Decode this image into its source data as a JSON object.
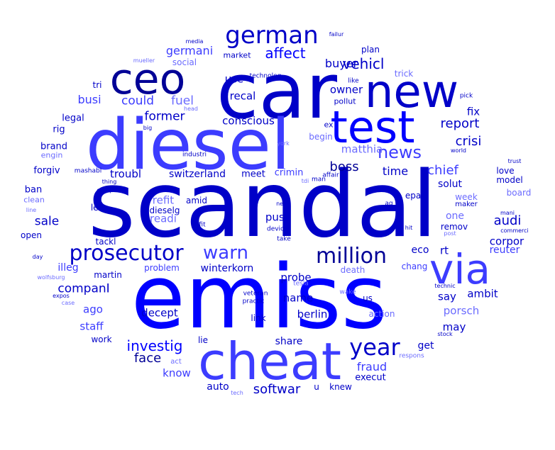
{
  "palette": {
    "blue": "#0000ff",
    "navy": "#0000c8",
    "medium": "#3c3cff",
    "light": "#6b6bff",
    "dark": "#000096"
  },
  "words": [
    {
      "text": "scandal",
      "size": 1.0,
      "tone": "navy"
    },
    {
      "text": "emiss",
      "size": 0.96,
      "tone": "blue"
    },
    {
      "text": "car",
      "size": 0.82,
      "tone": "navy"
    },
    {
      "text": "diesel",
      "size": 0.75,
      "tone": "medium"
    },
    {
      "text": "cheat",
      "size": 0.55,
      "tone": "medium"
    },
    {
      "text": "test",
      "size": 0.5,
      "tone": "blue"
    },
    {
      "text": "new",
      "size": 0.5,
      "tone": "navy"
    },
    {
      "text": "via",
      "size": 0.45,
      "tone": "medium"
    },
    {
      "text": "ceo",
      "size": 0.45,
      "tone": "dark"
    },
    {
      "text": "german",
      "size": 0.24,
      "tone": "navy"
    },
    {
      "text": "prosecutor",
      "size": 0.22,
      "tone": "navy"
    },
    {
      "text": "million",
      "size": 0.22,
      "tone": "dark"
    },
    {
      "text": "year",
      "size": 0.22,
      "tone": "navy"
    },
    {
      "text": "warn",
      "size": 0.18,
      "tone": "medium"
    },
    {
      "text": "news",
      "size": 0.16,
      "tone": "medium"
    },
    {
      "text": "affect",
      "size": 0.14,
      "tone": "blue"
    },
    {
      "text": "vehicl",
      "size": 0.13,
      "tone": "navy"
    },
    {
      "text": "investig",
      "size": 0.13,
      "tone": "blue"
    },
    {
      "text": "softwar",
      "size": 0.12,
      "tone": "navy"
    },
    {
      "text": "fraud",
      "size": 0.11,
      "tone": "medium"
    },
    {
      "text": "crisi",
      "size": 0.12,
      "tone": "navy"
    },
    {
      "text": "report",
      "size": 0.12,
      "tone": "navy"
    },
    {
      "text": "chief",
      "size": 0.12,
      "tone": "medium"
    },
    {
      "text": "boss",
      "size": 0.12,
      "tone": "dark"
    },
    {
      "text": "time",
      "size": 0.11,
      "tone": "navy"
    },
    {
      "text": "audi",
      "size": 0.12,
      "tone": "navy"
    },
    {
      "text": "companI",
      "size": 0.11,
      "tone": "navy"
    },
    {
      "text": "sale",
      "size": 0.12,
      "tone": "navy"
    },
    {
      "text": "face",
      "size": 0.12,
      "tone": "dark"
    },
    {
      "text": "former",
      "size": 0.11,
      "tone": "navy"
    },
    {
      "text": "fuel",
      "size": 0.11,
      "tone": "light"
    },
    {
      "text": "could",
      "size": 0.11,
      "tone": "medium"
    },
    {
      "text": "busi",
      "size": 0.1,
      "tone": "medium"
    },
    {
      "text": "germani",
      "size": 0.1,
      "tone": "medium"
    },
    {
      "text": "buyer",
      "size": 0.1,
      "tone": "navy"
    },
    {
      "text": "owner",
      "size": 0.1,
      "tone": "navy"
    },
    {
      "text": "use",
      "size": 0.1,
      "tone": "navy"
    },
    {
      "text": "recal",
      "size": 0.1,
      "tone": "navy"
    },
    {
      "text": "conscious",
      "size": 0.1,
      "tone": "navy"
    },
    {
      "text": "fix",
      "size": 0.1,
      "tone": "navy"
    },
    {
      "text": "matthia",
      "size": 0.09,
      "tone": "light"
    },
    {
      "text": "troubl",
      "size": 0.09,
      "tone": "navy"
    },
    {
      "text": "switzerland",
      "size": 0.09,
      "tone": "navy"
    },
    {
      "text": "refit",
      "size": 0.09,
      "tone": "light"
    },
    {
      "text": "readi",
      "size": 0.09,
      "tone": "light"
    },
    {
      "text": "push",
      "size": 0.09,
      "tone": "navy"
    },
    {
      "text": "probe",
      "size": 0.09,
      "tone": "navy"
    },
    {
      "text": "name",
      "size": 0.09,
      "tone": "navy"
    },
    {
      "text": "berlin",
      "size": 0.09,
      "tone": "navy"
    },
    {
      "text": "say",
      "size": 0.09,
      "tone": "navy"
    },
    {
      "text": "ambit",
      "size": 0.09,
      "tone": "navy"
    },
    {
      "text": "porsch",
      "size": 0.09,
      "tone": "light"
    },
    {
      "text": "may",
      "size": 0.09,
      "tone": "navy"
    },
    {
      "text": "ago",
      "size": 0.09,
      "tone": "medium"
    },
    {
      "text": "staff",
      "size": 0.09,
      "tone": "medium"
    },
    {
      "text": "decept",
      "size": 0.09,
      "tone": "navy"
    },
    {
      "text": "know",
      "size": 0.09,
      "tone": "medium"
    },
    {
      "text": "share",
      "size": 0.09,
      "tone": "navy"
    },
    {
      "text": "auto",
      "size": 0.09,
      "tone": "navy"
    },
    {
      "text": "get",
      "size": 0.08,
      "tone": "navy"
    },
    {
      "text": "execut",
      "size": 0.08,
      "tone": "navy"
    },
    {
      "text": "corpor",
      "size": 0.09,
      "tone": "navy"
    },
    {
      "text": "reuter",
      "size": 0.09,
      "tone": "medium"
    },
    {
      "text": "rt",
      "size": 0.09,
      "tone": "navy"
    },
    {
      "text": "eco",
      "size": 0.09,
      "tone": "navy"
    },
    {
      "text": "one",
      "size": 0.09,
      "tone": "light"
    },
    {
      "text": "solut",
      "size": 0.08,
      "tone": "navy"
    },
    {
      "text": "crimin",
      "size": 0.08,
      "tone": "medium"
    },
    {
      "text": "meet",
      "size": 0.08,
      "tone": "navy"
    },
    {
      "text": "winterkorn",
      "size": 0.08,
      "tone": "navy"
    },
    {
      "text": "illeg",
      "size": 0.08,
      "tone": "medium"
    },
    {
      "text": "forgiv",
      "size": 0.08,
      "tone": "navy"
    },
    {
      "text": "brand",
      "size": 0.08,
      "tone": "navy"
    },
    {
      "text": "rig",
      "size": 0.08,
      "tone": "navy"
    },
    {
      "text": "legal",
      "size": 0.08,
      "tone": "navy"
    },
    {
      "text": "ban",
      "size": 0.08,
      "tone": "navy"
    },
    {
      "text": "dieselg",
      "size": 0.07,
      "tone": "navy"
    },
    {
      "text": "amid",
      "size": 0.07,
      "tone": "navy"
    },
    {
      "text": "led",
      "size": 0.07,
      "tone": "navy"
    },
    {
      "text": "open",
      "size": 0.07,
      "tone": "navy"
    },
    {
      "text": "tackl",
      "size": 0.07,
      "tone": "navy"
    },
    {
      "text": "martin",
      "size": 0.07,
      "tone": "navy"
    },
    {
      "text": "problem",
      "size": 0.07,
      "tone": "medium"
    },
    {
      "text": "link",
      "size": 0.07,
      "tone": "navy"
    },
    {
      "text": "us",
      "size": 0.07,
      "tone": "navy"
    },
    {
      "text": "u",
      "size": 0.07,
      "tone": "navy"
    },
    {
      "text": "knew",
      "size": 0.07,
      "tone": "navy"
    },
    {
      "text": "lie",
      "size": 0.07,
      "tone": "navy"
    },
    {
      "text": "work",
      "size": 0.07,
      "tone": "navy"
    },
    {
      "text": "death",
      "size": 0.07,
      "tone": "light"
    },
    {
      "text": "chang",
      "size": 0.07,
      "tone": "medium"
    },
    {
      "text": "action",
      "size": 0.07,
      "tone": "light"
    },
    {
      "text": "remov",
      "size": 0.07,
      "tone": "navy"
    },
    {
      "text": "epa",
      "size": 0.07,
      "tone": "navy"
    },
    {
      "text": "week",
      "size": 0.07,
      "tone": "light"
    },
    {
      "text": "maker",
      "size": 0.06,
      "tone": "navy"
    },
    {
      "text": "love",
      "size": 0.07,
      "tone": "navy"
    },
    {
      "text": "model",
      "size": 0.07,
      "tone": "navy"
    },
    {
      "text": "board",
      "size": 0.07,
      "tone": "light"
    },
    {
      "text": "tri",
      "size": 0.07,
      "tone": "navy"
    },
    {
      "text": "social",
      "size": 0.07,
      "tone": "light"
    },
    {
      "text": "market",
      "size": 0.06,
      "tone": "navy"
    },
    {
      "text": "plan",
      "size": 0.07,
      "tone": "navy"
    },
    {
      "text": "trick",
      "size": 0.07,
      "tone": "light"
    },
    {
      "text": "pollut",
      "size": 0.06,
      "tone": "navy"
    },
    {
      "text": "begin",
      "size": 0.07,
      "tone": "light"
    },
    {
      "text": "ex",
      "size": 0.06,
      "tone": "navy"
    },
    {
      "text": "engin",
      "size": 0.06,
      "tone": "light"
    },
    {
      "text": "clean",
      "size": 0.06,
      "tone": "light"
    },
    {
      "text": "pick",
      "size": 0.05,
      "tone": "navy"
    },
    {
      "text": "like",
      "size": 0.05,
      "tone": "navy"
    },
    {
      "text": "technolog",
      "size": 0.05,
      "tone": "navy"
    },
    {
      "text": "head",
      "size": 0.05,
      "tone": "light"
    },
    {
      "text": "big",
      "size": 0.05,
      "tone": "navy"
    },
    {
      "text": "york",
      "size": 0.05,
      "tone": "light"
    },
    {
      "text": "industri",
      "size": 0.05,
      "tone": "navy"
    },
    {
      "text": "affair",
      "size": 0.05,
      "tone": "navy"
    },
    {
      "text": "man",
      "size": 0.05,
      "tone": "navy"
    },
    {
      "text": "tdi",
      "size": 0.05,
      "tone": "light"
    },
    {
      "text": "mashabl",
      "size": 0.05,
      "tone": "navy"
    },
    {
      "text": "thing",
      "size": 0.05,
      "tone": "navy"
    },
    {
      "text": "group",
      "size": 0.05,
      "tone": "navy"
    },
    {
      "text": "line",
      "size": 0.05,
      "tone": "light"
    },
    {
      "text": "next",
      "size": 0.05,
      "tone": "navy"
    },
    {
      "text": "ag",
      "size": 0.05,
      "tone": "navy"
    },
    {
      "text": "mani",
      "size": 0.05,
      "tone": "navy"
    },
    {
      "text": "fit",
      "size": 0.05,
      "tone": "navy"
    },
    {
      "text": "devic",
      "size": 0.05,
      "tone": "navy"
    },
    {
      "text": "hit",
      "size": 0.05,
      "tone": "navy"
    },
    {
      "text": "post",
      "size": 0.05,
      "tone": "light"
    },
    {
      "text": "commerci",
      "size": 0.05,
      "tone": "navy"
    },
    {
      "text": "take",
      "size": 0.05,
      "tone": "navy"
    },
    {
      "text": "day",
      "size": 0.05,
      "tone": "navy"
    },
    {
      "text": "wolfsburg",
      "size": 0.05,
      "tone": "light"
    },
    {
      "text": "expos",
      "size": 0.05,
      "tone": "navy"
    },
    {
      "text": "case",
      "size": 0.05,
      "tone": "light"
    },
    {
      "text": "veteran",
      "size": 0.05,
      "tone": "navy"
    },
    {
      "text": "practic",
      "size": 0.05,
      "tone": "navy"
    },
    {
      "text": "tesla",
      "size": 0.05,
      "tone": "light"
    },
    {
      "text": "wake",
      "size": 0.05,
      "tone": "light"
    },
    {
      "text": "technic",
      "size": 0.05,
      "tone": "navy"
    },
    {
      "text": "stock",
      "size": 0.05,
      "tone": "navy"
    },
    {
      "text": "respons",
      "size": 0.05,
      "tone": "light"
    },
    {
      "text": "act",
      "size": 0.05,
      "tone": "light"
    },
    {
      "text": "tech",
      "size": 0.05,
      "tone": "light"
    },
    {
      "text": "media",
      "size": 0.05,
      "tone": "navy"
    },
    {
      "text": "failur",
      "size": 0.05,
      "tone": "navy"
    },
    {
      "text": "mueller",
      "size": 0.05,
      "tone": "light"
    },
    {
      "text": "trust",
      "size": 0.05,
      "tone": "navy"
    },
    {
      "text": "world",
      "size": 0.05,
      "tone": "navy"
    }
  ]
}
